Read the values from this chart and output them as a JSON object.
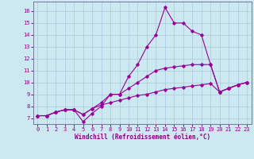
{
  "xlabel": "Windchill (Refroidissement éolien,°C)",
  "background_color": "#cce8f0",
  "grid_color": "#aac8d8",
  "line_color": "#990099",
  "xlim": [
    -0.5,
    23.5
  ],
  "ylim": [
    6.5,
    16.8
  ],
  "xticks": [
    0,
    1,
    2,
    3,
    4,
    5,
    6,
    7,
    8,
    9,
    10,
    11,
    12,
    13,
    14,
    15,
    16,
    17,
    18,
    19,
    20,
    21,
    22,
    23
  ],
  "yticks": [
    7,
    8,
    9,
    10,
    11,
    12,
    13,
    14,
    15,
    16
  ],
  "line1_x": [
    0,
    1,
    2,
    3,
    4,
    5,
    6,
    7,
    8,
    9,
    10,
    11,
    12,
    13,
    14,
    15,
    16,
    17,
    18,
    19,
    20,
    21,
    22,
    23
  ],
  "line1_y": [
    7.2,
    7.2,
    7.5,
    7.7,
    7.7,
    6.7,
    7.4,
    8.0,
    9.0,
    9.0,
    10.5,
    11.5,
    13.0,
    14.0,
    16.3,
    15.0,
    15.0,
    14.3,
    14.0,
    11.5,
    9.2,
    9.5,
    9.8,
    10.0
  ],
  "line2_x": [
    0,
    1,
    2,
    3,
    4,
    5,
    6,
    7,
    8,
    9,
    10,
    11,
    12,
    13,
    14,
    15,
    16,
    17,
    18,
    19,
    20,
    21,
    22,
    23
  ],
  "line2_y": [
    7.2,
    7.2,
    7.5,
    7.7,
    7.7,
    7.3,
    7.8,
    8.3,
    9.0,
    9.0,
    9.5,
    10.0,
    10.5,
    11.0,
    11.2,
    11.3,
    11.4,
    11.5,
    11.5,
    11.5,
    9.2,
    9.5,
    9.8,
    10.0
  ],
  "line3_x": [
    0,
    1,
    2,
    3,
    4,
    5,
    6,
    7,
    8,
    9,
    10,
    11,
    12,
    13,
    14,
    15,
    16,
    17,
    18,
    19,
    20,
    21,
    22,
    23
  ],
  "line3_y": [
    7.2,
    7.2,
    7.5,
    7.7,
    7.7,
    7.3,
    7.8,
    8.1,
    8.3,
    8.5,
    8.7,
    8.9,
    9.0,
    9.2,
    9.4,
    9.5,
    9.6,
    9.7,
    9.8,
    9.9,
    9.2,
    9.5,
    9.8,
    10.0
  ],
  "tick_color": "#880088",
  "label_fontsize": 5.0,
  "xlabel_fontsize": 5.5
}
